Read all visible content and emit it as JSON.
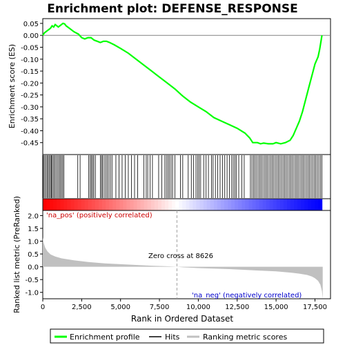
{
  "chart_data": {
    "type": "line",
    "title": "Enrichment plot: DEFENSE_RESPONSE",
    "top_panel": {
      "ylabel": "Enrichment score (ES)",
      "ylim": [
        -0.5,
        0.07
      ],
      "yticks": [
        0.05,
        0.0,
        -0.05,
        -0.1,
        -0.15,
        -0.2,
        -0.25,
        -0.3,
        -0.35,
        -0.4,
        -0.45
      ],
      "ytick_labels": [
        "0.05",
        "0.00",
        "-0.05",
        "-0.10",
        "-0.15",
        "-0.20",
        "-0.25",
        "-0.30",
        "-0.35",
        "-0.40",
        "-0.45"
      ],
      "series": [
        {
          "name": "Enrichment profile",
          "color": "#00ff00",
          "x": [
            0,
            100,
            200,
            300,
            400,
            500,
            600,
            700,
            800,
            900,
            1000,
            1100,
            1200,
            1300,
            1400,
            1500,
            1700,
            2000,
            2300,
            2500,
            2700,
            2900,
            3100,
            3300,
            3500,
            3700,
            3900,
            4100,
            4300,
            4600,
            5000,
            5500,
            6000,
            6500,
            7000,
            7500,
            8000,
            8500,
            9000,
            9500,
            10000,
            10500,
            11000,
            11500,
            12000,
            12500,
            13000,
            13300,
            13500,
            13800,
            14000,
            14200,
            14500,
            14800,
            15000,
            15300,
            15600,
            15900,
            16100,
            16300,
            16500,
            16700,
            16900,
            17100,
            17300,
            17500,
            17700,
            17800,
            17900,
            17950
          ],
          "y": [
            0.0,
            0.01,
            0.015,
            0.02,
            0.025,
            0.03,
            0.04,
            0.035,
            0.045,
            0.04,
            0.035,
            0.04,
            0.045,
            0.05,
            0.048,
            0.04,
            0.03,
            0.015,
            0.005,
            -0.01,
            -0.015,
            -0.01,
            -0.01,
            -0.02,
            -0.025,
            -0.03,
            -0.025,
            -0.025,
            -0.03,
            -0.04,
            -0.055,
            -0.075,
            -0.1,
            -0.125,
            -0.15,
            -0.175,
            -0.2,
            -0.225,
            -0.255,
            -0.28,
            -0.3,
            -0.32,
            -0.345,
            -0.36,
            -0.375,
            -0.39,
            -0.41,
            -0.43,
            -0.45,
            -0.45,
            -0.455,
            -0.452,
            -0.455,
            -0.455,
            -0.45,
            -0.455,
            -0.45,
            -0.44,
            -0.42,
            -0.39,
            -0.36,
            -0.32,
            -0.27,
            -0.22,
            -0.17,
            -0.12,
            -0.09,
            -0.06,
            -0.02,
            0.0
          ]
        }
      ]
    },
    "hits_panel": {
      "name": "Hits",
      "color": "#000000",
      "hit_ranks": [
        40,
        120,
        200,
        280,
        350,
        420,
        500,
        560,
        620,
        700,
        780,
        860,
        950,
        1040,
        1120,
        1200,
        1280,
        1360,
        2250,
        2400,
        2950,
        3050,
        3120,
        3200,
        3280,
        3380,
        3700,
        3780,
        3850,
        3950,
        4050,
        4150,
        4250,
        4350,
        4450,
        4700,
        4900,
        5100,
        5300,
        5500,
        5700,
        5900,
        6100,
        6500,
        6650,
        6750,
        6900,
        7050,
        7450,
        7650,
        7850,
        7950,
        8050,
        8150,
        8250,
        8350,
        8500,
        8850,
        9000,
        9350,
        9550,
        9700,
        9850,
        9950,
        10050,
        10150,
        10350,
        10500,
        10650,
        10850,
        10950,
        11100,
        11250,
        11400,
        11550,
        11700,
        11850,
        12000,
        12150,
        12250,
        12350,
        12450,
        12600,
        12800,
        12950,
        13350,
        13450,
        13550,
        13650,
        13750,
        13850,
        13950,
        14050,
        14150,
        14250,
        14350,
        14450,
        14550,
        14650,
        14750,
        14850,
        14950,
        15050,
        15150,
        15250,
        15350,
        15450,
        15550,
        15650,
        15750,
        15850,
        15950,
        16050,
        16150,
        16250,
        16350,
        16450,
        16550,
        16650,
        16750,
        16850,
        16950,
        17050,
        17150,
        17250,
        17350,
        17450,
        17550,
        17650,
        17750,
        17850,
        17950
      ]
    },
    "ranking_bar": {
      "pos_color": "#ff0000",
      "neg_color": "#0000ff",
      "mid_color": "#ffffff"
    },
    "bottom_panel": {
      "ylabel": "Ranked list metric (PreRanked)",
      "ylim": [
        -1.25,
        2.2
      ],
      "yticks": [
        2.0,
        1.5,
        1.0,
        0.5,
        0.0,
        -0.5,
        -1.0
      ],
      "ytick_labels": [
        "2.0",
        "1.5",
        "1.0",
        "0.5",
        "0.0",
        "-0.5",
        "-1.0"
      ],
      "metric_color": "#c0c0c0",
      "metric_x": [
        0,
        50,
        150,
        300,
        500,
        800,
        1200,
        2000,
        3000,
        4000,
        5000,
        6000,
        7000,
        8000,
        8626,
        9000,
        10000,
        11000,
        12000,
        13000,
        14000,
        15000,
        16000,
        16500,
        17000,
        17300,
        17500,
        17700,
        17850,
        17950,
        18000
      ],
      "metric_y": [
        1.15,
        0.95,
        0.75,
        0.6,
        0.48,
        0.4,
        0.33,
        0.25,
        0.18,
        0.13,
        0.1,
        0.07,
        0.04,
        0.02,
        0.0,
        -0.02,
        -0.05,
        -0.07,
        -0.09,
        -0.12,
        -0.15,
        -0.18,
        -0.23,
        -0.27,
        -0.32,
        -0.38,
        -0.45,
        -0.55,
        -0.7,
        -0.95,
        -1.25
      ],
      "pos_label": "'na_pos' (positively correlated)",
      "neg_label": "'na_neg' (negatively correlated)",
      "zero_cross_label": "Zero cross at 8626",
      "zero_cross": 8626
    },
    "xlabel": "Rank in Ordered Dataset",
    "xlim": [
      0,
      18500
    ],
    "xticks": [
      0,
      2500,
      5000,
      7500,
      10000,
      12500,
      15000,
      17500
    ],
    "xtick_labels": [
      "0",
      "2,500",
      "5,000",
      "7,500",
      "10,000",
      "12,500",
      "15,000",
      "17,500"
    ],
    "n_genes": 17950,
    "legend": {
      "placement": "bottom",
      "entries": [
        "Enrichment profile",
        "Hits",
        "Ranking metric scores"
      ]
    }
  }
}
